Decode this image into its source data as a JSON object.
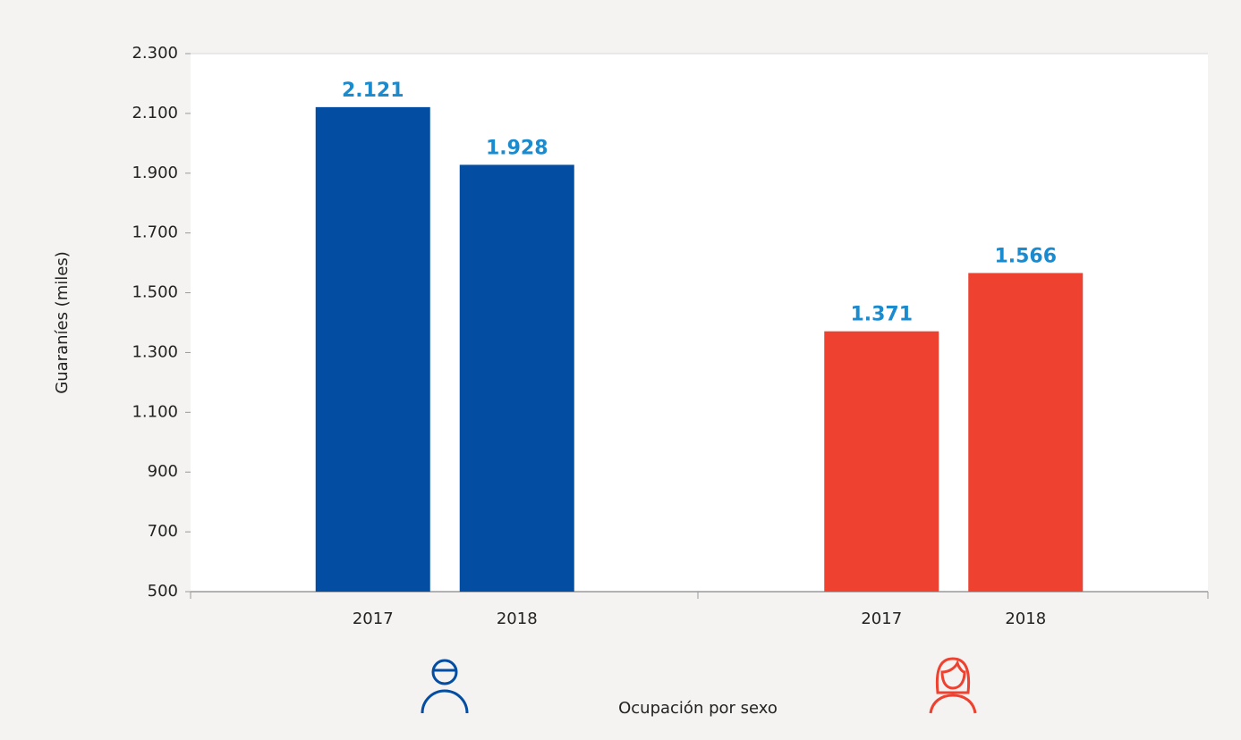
{
  "chart_data": {
    "type": "grouped-bar",
    "x_label": "Ocupación por sexo",
    "y_label": "Guaraníes (miles)",
    "groups": [
      {
        "color": "#034ea2",
        "categories": [
          "2017",
          "2018"
        ],
        "values": [
          2121,
          1928
        ],
        "value_labels": [
          "2.121",
          "1.928"
        ]
      },
      {
        "color": "#ee4130",
        "categories": [
          "2017",
          "2018"
        ],
        "values": [
          1371,
          1566
        ],
        "value_labels": [
          "1.371",
          "1.566"
        ]
      }
    ],
    "value_label_color": "#1b8bd0",
    "ylim": [
      500,
      2300
    ],
    "yticks": [
      500,
      700,
      900,
      {
        "value": 1100,
        "label": "1.100"
      },
      {
        "value": 1300,
        "label": "1.300"
      },
      {
        "value": 1500,
        "label": "1.500"
      },
      {
        "value": 1700,
        "label": "1.700"
      },
      {
        "value": 1900,
        "label": "1.900"
      },
      {
        "value": 2100,
        "label": "2.100"
      },
      {
        "value": 2300,
        "label": "2.300"
      }
    ]
  }
}
